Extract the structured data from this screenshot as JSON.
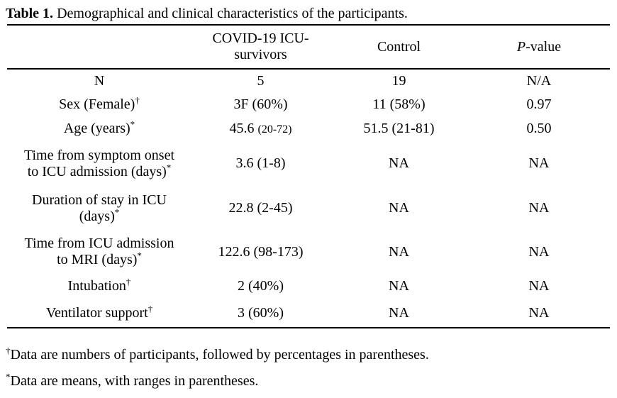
{
  "caption": {
    "label": "Table 1.",
    "text": "Demographical and clinical characteristics of the participants."
  },
  "header": {
    "group_line1": "COVID-19 ICU-",
    "group_line2": "survivors",
    "control": "Control",
    "pvalue_italic": "P",
    "pvalue_rest": "-value"
  },
  "rows": [
    {
      "label": "N",
      "icu": "5",
      "control": "19",
      "p": "N/A"
    },
    {
      "label": "Sex (Female)",
      "sup": "†",
      "icu": "3F (60%)",
      "control": "11 (58%)",
      "p": "0.97"
    },
    {
      "label": "Age (years)",
      "sup": "*",
      "icu_main": "45.6",
      "icu_paren": "(20-72)",
      "control": "51.5 (21-81)",
      "p": "0.50"
    },
    {
      "label_line1": "Time from symptom onset",
      "label_line2": "to ICU admission (days)",
      "sup": "*",
      "icu": "3.6 (1-8)",
      "control": "NA",
      "p": "NA"
    },
    {
      "label_line1": "Duration of stay in ICU",
      "label_line2": "(days)",
      "sup": "*",
      "icu": "22.8 (2-45)",
      "control": "NA",
      "p": "NA"
    },
    {
      "label_line1": "Time from ICU admission",
      "label_line2": "to MRI (days)",
      "sup": "*",
      "icu": "122.6 (98-173)",
      "control": "NA",
      "p": "NA"
    },
    {
      "label": "Intubation",
      "sup": "†",
      "icu": "2 (40%)",
      "control": "NA",
      "p": "NA"
    },
    {
      "label": "Ventilator support",
      "sup": "†",
      "icu": "3 (60%)",
      "control": "NA",
      "p": "NA"
    }
  ],
  "footnotes": [
    {
      "marker": "†",
      "text": "Data are numbers of participants, followed by percentages in parentheses."
    },
    {
      "marker": "*",
      "text": "Data are means, with ranges in parentheses."
    }
  ]
}
